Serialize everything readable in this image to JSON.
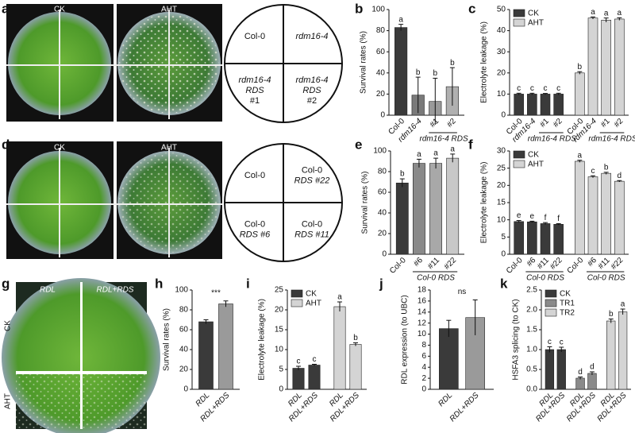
{
  "panel_labels": [
    "a",
    "d",
    "g"
  ],
  "plates": [
    {
      "labels": [
        "CK",
        "AHT"
      ]
    },
    {
      "labels": [
        "CK",
        "AHT"
      ]
    },
    {
      "labels": [
        "RDL",
        "RDL+RDS"
      ],
      "rows": [
        "CK",
        "AHT"
      ]
    }
  ],
  "diagrams": [
    {
      "labels": [
        [
          "Col-0"
        ],
        [
          "rdm16-4"
        ],
        [
          "rdm16-4",
          "RDS",
          "#1"
        ],
        [
          "rdm16-4",
          "RDS",
          "#2"
        ]
      ]
    },
    {
      "labels": [
        [
          "Col-0"
        ],
        [
          "Col-0",
          "RDS #22"
        ],
        [
          "Col-0",
          "RDS #6"
        ],
        [
          "Col-0",
          "RDS #11"
        ]
      ]
    }
  ],
  "chart_data": [
    {
      "type": "bar",
      "panel": "b",
      "ylabel": "Survival rates (%)",
      "ylim": [
        0,
        100
      ],
      "yticks": [
        0,
        20,
        40,
        60,
        80,
        100
      ],
      "categories": [
        "Col-0",
        "rdm16-4",
        "#1",
        "#2"
      ],
      "group_label": "rdm16-4 RDS",
      "series": [
        {
          "colors": [
            "#3a3a3a",
            "#7a7a7a",
            "#9a9a9a",
            "#b0b0b0"
          ],
          "values": [
            83,
            19,
            13,
            27
          ],
          "errors": [
            3,
            17,
            22,
            18
          ],
          "letters": [
            "a",
            "b",
            "b",
            "b"
          ]
        }
      ]
    },
    {
      "type": "bar",
      "panel": "c",
      "ylabel": "Electrolyte leakage (%)",
      "ylim": [
        0,
        50
      ],
      "yticks": [
        0,
        10,
        20,
        30,
        40,
        50
      ],
      "categories": [
        "Col-0",
        "rdm16-4",
        "#1",
        "#2"
      ],
      "group_label": "rdm16-4 RDS",
      "legend": "top-left",
      "series": [
        {
          "name": "CK",
          "color": "#3a3a3a",
          "values": [
            10,
            10,
            10,
            10
          ],
          "errors": [
            0.4,
            0.4,
            0.3,
            0.4
          ],
          "letters": [
            "c",
            "c",
            "c",
            "c"
          ]
        },
        {
          "name": "AHT",
          "color": "#d4d4d4",
          "values": [
            20,
            46,
            45,
            45.5
          ],
          "errors": [
            0.6,
            0.5,
            1,
            0.6
          ],
          "letters": [
            "b",
            "a",
            "a",
            "a"
          ]
        }
      ]
    },
    {
      "type": "bar",
      "panel": "e",
      "ylabel": "Survival rates (%)",
      "ylim": [
        0,
        100
      ],
      "yticks": [
        0,
        20,
        40,
        60,
        80,
        100
      ],
      "categories": [
        "Col-0",
        "#6",
        "#11",
        "#22"
      ],
      "group_label": "Col-0 RDS",
      "series": [
        {
          "colors": [
            "#3a3a3a",
            "#8a8a8a",
            "#a8a8a8",
            "#c8c8c8"
          ],
          "values": [
            69,
            88,
            88,
            93
          ],
          "errors": [
            4,
            4,
            5,
            4
          ],
          "letters": [
            "b",
            "a",
            "a",
            "a"
          ]
        }
      ]
    },
    {
      "type": "bar",
      "panel": "f",
      "ylabel": "Electrolyte leakage (%)",
      "ylim": [
        0,
        30
      ],
      "yticks": [
        0,
        5,
        10,
        15,
        20,
        25,
        30
      ],
      "categories": [
        "Col-0",
        "#6",
        "#11",
        "#22"
      ],
      "group_label": "Col-0 RDS",
      "legend": "top-left",
      "series": [
        {
          "name": "CK",
          "color": "#3a3a3a",
          "values": [
            9.5,
            9.4,
            8.9,
            8.7
          ],
          "errors": [
            0.3,
            0.2,
            0.3,
            0.2
          ],
          "letters": [
            "e",
            "e",
            "f",
            "f"
          ]
        },
        {
          "name": "AHT",
          "color": "#d4d4d4",
          "values": [
            27,
            22.5,
            23.5,
            21.2
          ],
          "errors": [
            0.3,
            0.3,
            0.3,
            0.2
          ],
          "letters": [
            "a",
            "c",
            "b",
            "d"
          ]
        }
      ]
    },
    {
      "type": "bar",
      "panel": "h",
      "ylabel": "Survival rates (%)",
      "ylim": [
        0,
        100
      ],
      "yticks": [
        0,
        20,
        40,
        60,
        80,
        100
      ],
      "categories": [
        "RDL",
        "RDL+RDS"
      ],
      "annotation": "***",
      "series": [
        {
          "colors": [
            "#3a3a3a",
            "#9a9a9a"
          ],
          "values": [
            68,
            86
          ],
          "errors": [
            2,
            3
          ]
        }
      ]
    },
    {
      "type": "bar",
      "panel": "i",
      "ylabel": "Electrolyte leakage (%)",
      "ylim": [
        0,
        25
      ],
      "yticks": [
        0,
        5,
        10,
        15,
        20,
        25
      ],
      "categories": [
        "RDL",
        "RDL+RDS"
      ],
      "legend": "top-left",
      "series": [
        {
          "name": "CK",
          "color": "#3a3a3a",
          "values": [
            5.3,
            6.1
          ],
          "errors": [
            0.5,
            0.2
          ],
          "letters": [
            "c",
            "c"
          ]
        },
        {
          "name": "AHT",
          "color": "#d4d4d4",
          "values": [
            20.8,
            11.3
          ],
          "errors": [
            1.2,
            0.4
          ],
          "letters": [
            "a",
            "b"
          ]
        }
      ]
    },
    {
      "type": "bar",
      "panel": "j",
      "ylabel": "RDL expression (to UBC)",
      "ylim": [
        0,
        18
      ],
      "yticks": [
        0,
        2,
        4,
        6,
        8,
        10,
        12,
        14,
        16,
        18
      ],
      "categories": [
        "RDL",
        "RDL+RDS"
      ],
      "annotation": "ns",
      "series": [
        {
          "colors": [
            "#3a3a3a",
            "#9a9a9a"
          ],
          "values": [
            11,
            13
          ],
          "errors": [
            1.5,
            3.2
          ]
        }
      ]
    },
    {
      "type": "bar",
      "panel": "k",
      "ylabel": "HSFA3 splicing (to CK)",
      "ylim": [
        0,
        2.5
      ],
      "yticks": [
        {
          "value": 0,
          "label": "0.0"
        },
        0.5,
        {
          "value": 1,
          "label": "1.0"
        },
        1.5,
        {
          "value": 2,
          "label": "2.0"
        },
        2.5
      ],
      "categories": [
        "RDL",
        "RDL+RDS"
      ],
      "legend": "top-left",
      "series": [
        {
          "name": "CK",
          "color": "#3a3a3a",
          "values": [
            1.0,
            1.0
          ],
          "errors": [
            0.07,
            0.06
          ],
          "letters": [
            "c",
            "c"
          ]
        },
        {
          "name": "TR1",
          "color": "#8a8a8a",
          "values": [
            0.28,
            0.4
          ],
          "errors": [
            0.03,
            0.04
          ],
          "letters": [
            "d",
            "d"
          ]
        },
        {
          "name": "TR2",
          "color": "#d4d4d4",
          "values": [
            1.72,
            1.95
          ],
          "errors": [
            0.05,
            0.07
          ],
          "letters": [
            "b",
            "a"
          ]
        }
      ]
    }
  ]
}
